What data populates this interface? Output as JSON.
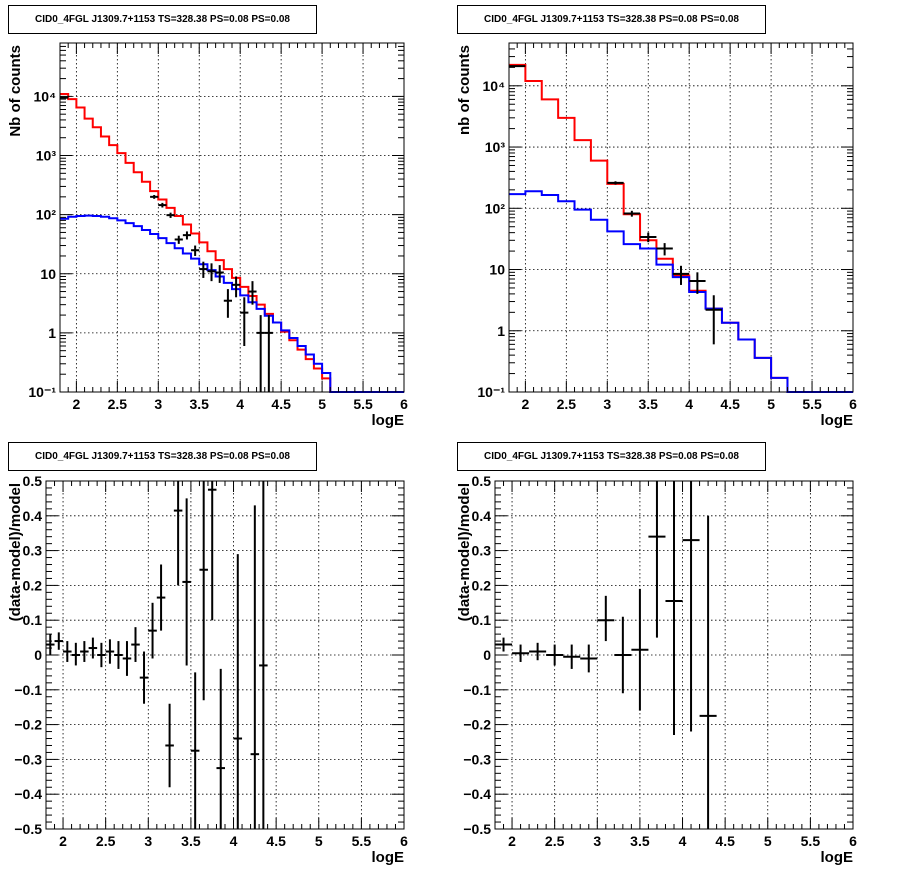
{
  "chart_data": [
    {
      "id": "top-left",
      "type": "histogram",
      "title": "CID0_4FGL J1309.7+1153 TS=328.38 PS=0.08 PS=0.08",
      "xlabel": "logE",
      "ylabel": "Nb of counts",
      "xlim": [
        1.8,
        6.0
      ],
      "ylim": [
        0.1,
        80000
      ],
      "log_y": true,
      "grid": true,
      "xticks": [
        2,
        2.5,
        3,
        3.5,
        4,
        4.5,
        5,
        5.5,
        6
      ],
      "xtick_labels": [
        "2",
        "2.5",
        "3",
        "3.5",
        "4",
        "4.5",
        "5",
        "5.5",
        "6"
      ],
      "yticks": [
        0.1,
        1,
        10,
        100,
        1000,
        10000
      ],
      "ytick_labels": [
        "10⁻¹",
        "1",
        "10",
        "10²",
        "10³",
        "10⁴"
      ],
      "bin_edges": [
        1.8,
        1.9,
        2.0,
        2.1,
        2.2,
        2.3,
        2.4,
        2.5,
        2.6,
        2.7,
        2.8,
        2.9,
        3.0,
        3.1,
        3.2,
        3.3,
        3.4,
        3.5,
        3.6,
        3.7,
        3.8,
        3.9,
        4.0,
        4.1,
        4.2,
        4.3,
        4.4,
        4.5,
        4.6,
        4.7,
        4.8,
        4.9,
        5.0,
        5.1,
        5.2,
        5.3,
        5.4,
        5.5,
        5.6,
        5.7,
        5.8,
        5.9,
        6.0
      ],
      "series": [
        {
          "color": "#ff0000",
          "values": [
            11000,
            9000,
            6500,
            4200,
            3000,
            2100,
            1500,
            1100,
            750,
            520,
            360,
            250,
            180,
            130,
            95,
            68,
            48,
            34,
            24,
            17,
            12,
            8.5,
            6,
            4.2,
            3.0,
            2.1,
            1.5,
            1.05,
            0.75,
            0.52,
            0.36,
            0.25,
            0.17,
            0.1,
            0.1,
            0.1,
            0.1,
            0.1,
            0.1,
            0.1,
            0.1,
            0.1
          ]
        },
        {
          "color": "#0000ff",
          "values": [
            85,
            92,
            95,
            96,
            95,
            92,
            87,
            80,
            72,
            64,
            55,
            47,
            40,
            33,
            27,
            22,
            18,
            14.5,
            11.5,
            9,
            7,
            5.5,
            4.3,
            3.3,
            2.55,
            1.95,
            1.5,
            1.1,
            0.82,
            0.6,
            0.43,
            0.3,
            0.21,
            0.1,
            0.1,
            0.1,
            0.1,
            0.1,
            0.1,
            0.1,
            0.1,
            0.1
          ]
        }
      ],
      "points": [
        {
          "x": 1.85,
          "y": 9500,
          "lo": 9300,
          "hi": 9700
        },
        {
          "x": 2.95,
          "y": 200,
          "lo": 185,
          "hi": 215
        },
        {
          "x": 3.05,
          "y": 145,
          "lo": 132,
          "hi": 158
        },
        {
          "x": 3.15,
          "y": 98,
          "lo": 88,
          "hi": 108
        },
        {
          "x": 3.25,
          "y": 38,
          "lo": 32,
          "hi": 44
        },
        {
          "x": 3.35,
          "y": 45,
          "lo": 38,
          "hi": 52
        },
        {
          "x": 3.45,
          "y": 25,
          "lo": 20,
          "hi": 30
        },
        {
          "x": 3.55,
          "y": 12,
          "lo": 8.5,
          "hi": 16
        },
        {
          "x": 3.65,
          "y": 11,
          "lo": 7.5,
          "hi": 15
        },
        {
          "x": 3.75,
          "y": 10.5,
          "lo": 7,
          "hi": 14
        },
        {
          "x": 3.85,
          "y": 3.5,
          "lo": 1.8,
          "hi": 5.5
        },
        {
          "x": 3.95,
          "y": 6.5,
          "lo": 4,
          "hi": 9
        },
        {
          "x": 4.05,
          "y": 2.2,
          "lo": 0.6,
          "hi": 4
        },
        {
          "x": 4.15,
          "y": 5.0,
          "lo": 3,
          "hi": 7.5
        },
        {
          "x": 4.25,
          "y": 1.0,
          "lo": 0.1,
          "hi": 2.0
        },
        {
          "x": 4.35,
          "y": 1.0,
          "lo": 0.1,
          "hi": 2.0
        }
      ]
    },
    {
      "id": "top-right",
      "type": "histogram",
      "title": "CID0_4FGL J1309.7+1153 TS=328.38 PS=0.08 PS=0.08",
      "xlabel": "logE",
      "ylabel": "nb of counts",
      "xlim": [
        1.8,
        6.0
      ],
      "ylim": [
        0.1,
        50000
      ],
      "log_y": true,
      "grid": true,
      "xticks": [
        2,
        2.5,
        3,
        3.5,
        4,
        4.5,
        5,
        5.5,
        6
      ],
      "xtick_labels": [
        "2",
        "2.5",
        "3",
        "3.5",
        "4",
        "4.5",
        "5",
        "5.5",
        "6"
      ],
      "yticks": [
        0.1,
        1,
        10,
        100,
        1000,
        10000
      ],
      "ytick_labels": [
        "10⁻¹",
        "1",
        "10",
        "10²",
        "10³",
        "10⁴"
      ],
      "bin_edges": [
        1.8,
        2.0,
        2.2,
        2.4,
        2.6,
        2.8,
        3.0,
        3.2,
        3.4,
        3.6,
        3.8,
        4.0,
        4.2,
        4.4,
        4.6,
        4.8,
        5.0,
        5.2,
        5.4,
        5.6,
        5.8,
        6.0
      ],
      "series": [
        {
          "color": "#ff0000",
          "values": [
            22000,
            12000,
            6000,
            3000,
            1300,
            600,
            250,
            80,
            30,
            15,
            8,
            4.5,
            2.3,
            1.35,
            0.72,
            0.36,
            0.17,
            0.1,
            0.1,
            0.1,
            0.1
          ]
        },
        {
          "color": "#0000ff",
          "values": [
            170,
            190,
            165,
            130,
            95,
            65,
            42,
            26,
            22,
            12,
            7.5,
            4.3,
            2.3,
            1.35,
            0.72,
            0.36,
            0.17,
            0.1,
            0.1,
            0.1,
            0.1
          ]
        }
      ],
      "points": [
        {
          "x": 1.9,
          "y": 21000,
          "lo": 20800,
          "hi": 21200
        },
        {
          "x": 3.1,
          "y": 260,
          "lo": 244,
          "hi": 276
        },
        {
          "x": 3.3,
          "y": 82,
          "lo": 73,
          "hi": 91
        },
        {
          "x": 3.5,
          "y": 34,
          "lo": 28,
          "hi": 40
        },
        {
          "x": 3.7,
          "y": 22,
          "lo": 17,
          "hi": 27
        },
        {
          "x": 3.9,
          "y": 8.5,
          "lo": 5.6,
          "hi": 11.5
        },
        {
          "x": 4.1,
          "y": 6.5,
          "lo": 4,
          "hi": 9
        },
        {
          "x": 4.3,
          "y": 2.2,
          "lo": 0.6,
          "hi": 3.8
        }
      ]
    },
    {
      "id": "bottom-left",
      "type": "scatter",
      "title": "CID0_4FGL J1309.7+1153 TS=328.38 PS=0.08 PS=0.08",
      "xlabel": "logE",
      "ylabel": "(data-model)/model",
      "xlim": [
        1.8,
        6.0
      ],
      "ylim": [
        -0.5,
        0.5
      ],
      "log_y": false,
      "grid": true,
      "xticks": [
        2,
        2.5,
        3,
        3.5,
        4,
        4.5,
        5,
        5.5,
        6
      ],
      "xtick_labels": [
        "2",
        "2.5",
        "3",
        "3.5",
        "4",
        "4.5",
        "5",
        "5.5",
        "6"
      ],
      "yticks": [
        -0.5,
        -0.4,
        -0.3,
        -0.2,
        -0.1,
        0,
        0.1,
        0.2,
        0.3,
        0.4,
        0.5
      ],
      "ytick_labels": [
        "−0.5",
        "−0.4",
        "−0.3",
        "−0.2",
        "−0.1",
        "0",
        "0.1",
        "0.2",
        "0.3",
        "0.4",
        "0.5"
      ],
      "xerr": 0.05,
      "points": [
        {
          "x": 1.85,
          "y": 0.03,
          "lo": 0.0,
          "hi": 0.06
        },
        {
          "x": 1.95,
          "y": 0.04,
          "lo": 0.015,
          "hi": 0.065
        },
        {
          "x": 2.05,
          "y": 0.01,
          "lo": -0.02,
          "hi": 0.04
        },
        {
          "x": 2.15,
          "y": 0.0,
          "lo": -0.03,
          "hi": 0.035
        },
        {
          "x": 2.25,
          "y": 0.01,
          "lo": -0.02,
          "hi": 0.04
        },
        {
          "x": 2.35,
          "y": 0.02,
          "lo": -0.01,
          "hi": 0.05
        },
        {
          "x": 2.45,
          "y": 0.0,
          "lo": -0.035,
          "hi": 0.035
        },
        {
          "x": 2.55,
          "y": 0.01,
          "lo": -0.025,
          "hi": 0.045
        },
        {
          "x": 2.65,
          "y": 0.0,
          "lo": -0.04,
          "hi": 0.04
        },
        {
          "x": 2.75,
          "y": -0.01,
          "lo": -0.06,
          "hi": 0.04
        },
        {
          "x": 2.85,
          "y": 0.03,
          "lo": -0.02,
          "hi": 0.08
        },
        {
          "x": 2.95,
          "y": -0.065,
          "lo": -0.14,
          "hi": 0.01
        },
        {
          "x": 3.05,
          "y": 0.07,
          "lo": -0.01,
          "hi": 0.15
        },
        {
          "x": 3.15,
          "y": 0.165,
          "lo": 0.07,
          "hi": 0.26
        },
        {
          "x": 3.25,
          "y": -0.26,
          "lo": -0.38,
          "hi": -0.14
        },
        {
          "x": 3.35,
          "y": 0.415,
          "lo": 0.2,
          "hi": 0.5
        },
        {
          "x": 3.45,
          "y": 0.21,
          "lo": -0.03,
          "hi": 0.45
        },
        {
          "x": 3.55,
          "y": -0.275,
          "lo": -0.5,
          "hi": -0.05
        },
        {
          "x": 3.65,
          "y": 0.245,
          "lo": -0.13,
          "hi": 0.5
        },
        {
          "x": 3.75,
          "y": 0.475,
          "lo": 0.1,
          "hi": 0.5
        },
        {
          "x": 3.85,
          "y": -0.325,
          "lo": -0.5,
          "hi": -0.04
        },
        {
          "x": 4.05,
          "y": -0.24,
          "lo": -0.5,
          "hi": 0.29
        },
        {
          "x": 4.25,
          "y": -0.285,
          "lo": -0.5,
          "hi": 0.43
        },
        {
          "x": 4.35,
          "y": -0.03,
          "lo": -0.5,
          "hi": 0.5
        }
      ]
    },
    {
      "id": "bottom-right",
      "type": "scatter",
      "title": "CID0_4FGL J1309.7+1153 TS=328.38 PS=0.08 PS=0.08",
      "xlabel": "logE",
      "ylabel": "(data-model)/model",
      "xlim": [
        1.8,
        6.0
      ],
      "ylim": [
        -0.5,
        0.5
      ],
      "log_y": false,
      "grid": true,
      "xticks": [
        2,
        2.5,
        3,
        3.5,
        4,
        4.5,
        5,
        5.5,
        6
      ],
      "xtick_labels": [
        "2",
        "2.5",
        "3",
        "3.5",
        "4",
        "4.5",
        "5",
        "5.5",
        "6"
      ],
      "yticks": [
        -0.5,
        -0.4,
        -0.3,
        -0.2,
        -0.1,
        0,
        0.1,
        0.2,
        0.3,
        0.4,
        0.5
      ],
      "ytick_labels": [
        "−0.5",
        "−0.4",
        "−0.3",
        "−0.2",
        "−0.1",
        "0",
        "0.1",
        "0.2",
        "0.3",
        "0.4",
        "0.5"
      ],
      "xerr": 0.1,
      "points": [
        {
          "x": 1.9,
          "y": 0.03,
          "lo": 0.01,
          "hi": 0.05
        },
        {
          "x": 2.1,
          "y": 0.005,
          "lo": -0.02,
          "hi": 0.03
        },
        {
          "x": 2.3,
          "y": 0.01,
          "lo": -0.015,
          "hi": 0.035
        },
        {
          "x": 2.5,
          "y": 0.0,
          "lo": -0.03,
          "hi": 0.03
        },
        {
          "x": 2.7,
          "y": -0.005,
          "lo": -0.04,
          "hi": 0.03
        },
        {
          "x": 2.9,
          "y": -0.01,
          "lo": -0.05,
          "hi": 0.03
        },
        {
          "x": 3.1,
          "y": 0.1,
          "lo": 0.04,
          "hi": 0.17
        },
        {
          "x": 3.3,
          "y": 0.0,
          "lo": -0.11,
          "hi": 0.11
        },
        {
          "x": 3.5,
          "y": 0.015,
          "lo": -0.16,
          "hi": 0.19
        },
        {
          "x": 3.7,
          "y": 0.34,
          "lo": 0.05,
          "hi": 0.5
        },
        {
          "x": 3.9,
          "y": 0.155,
          "lo": -0.23,
          "hi": 0.5
        },
        {
          "x": 4.1,
          "y": 0.33,
          "lo": -0.22,
          "hi": 0.5
        },
        {
          "x": 4.3,
          "y": -0.175,
          "lo": -0.5,
          "hi": 0.4
        }
      ]
    }
  ]
}
